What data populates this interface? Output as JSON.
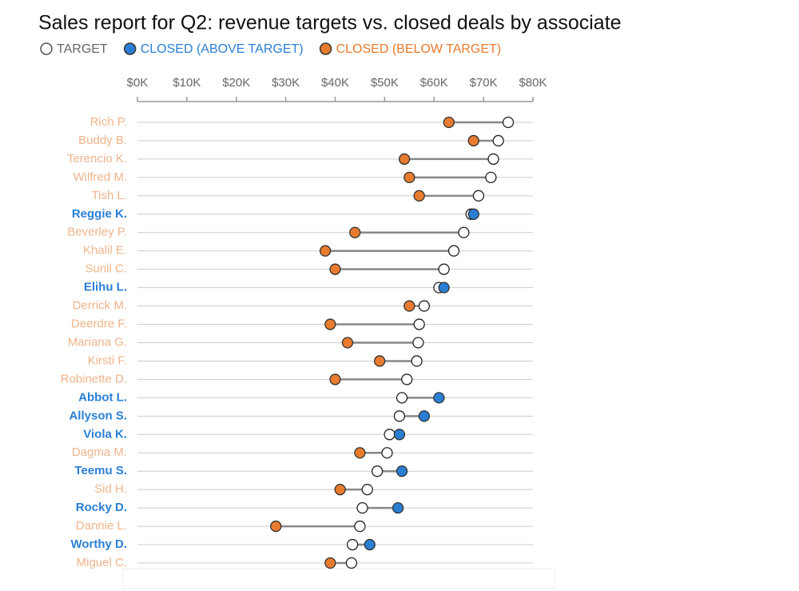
{
  "chart_data": {
    "type": "dot",
    "title": "Sales report for Q2: revenue targets vs. closed deals by associate",
    "categories": [
      "Rich P.",
      "Buddy B.",
      "Terencio K.",
      "Wilfred M.",
      "Tish L.",
      "Reggie K.",
      "Beverley P.",
      "Khalil E.",
      "Sunil C.",
      "Elihu L.",
      "Derrick M.",
      "Deerdre F.",
      "Mariana G.",
      "Kirsti F.",
      "Robinette D.",
      "Abbot L.",
      "Allyson S.",
      "Viola K.",
      "Dagma M.",
      "Teemu S.",
      "Sid H.",
      "Rocky D.",
      "Dannie L.",
      "Worthy D.",
      "Miguel C."
    ],
    "series": [
      {
        "name": "TARGET",
        "color": "#ffffff",
        "values": [
          75,
          73,
          72,
          71.5,
          69,
          67.5,
          66,
          64,
          62,
          61,
          58,
          57,
          56.8,
          56.5,
          54.5,
          53.5,
          53,
          51,
          50.5,
          48.5,
          46.5,
          45.5,
          45,
          43.5,
          43.3
        ]
      },
      {
        "name": "CLOSED (ABOVE TARGET)",
        "color": "#2a7fd4",
        "values": [
          null,
          null,
          null,
          null,
          null,
          68,
          null,
          null,
          null,
          62,
          null,
          null,
          null,
          null,
          null,
          61,
          58,
          53,
          null,
          53.5,
          null,
          52.7,
          null,
          47,
          null
        ]
      },
      {
        "name": "CLOSED (BELOW TARGET)",
        "color": "#e87b2e",
        "values": [
          63,
          68,
          54,
          55,
          57,
          null,
          44,
          38,
          40,
          null,
          55,
          39,
          42.5,
          49,
          40,
          null,
          null,
          null,
          45,
          null,
          41,
          null,
          28,
          null,
          39
        ]
      }
    ],
    "xlim": [
      0,
      80
    ],
    "xticks": [
      {
        "value": 0,
        "label": "$0K"
      },
      {
        "value": 10,
        "label": "$10K"
      },
      {
        "value": 20,
        "label": "$20K"
      },
      {
        "value": 30,
        "label": "$30K"
      },
      {
        "value": 40,
        "label": "$40K"
      },
      {
        "value": 50,
        "label": "$50K"
      },
      {
        "value": 60,
        "label": "$60K"
      },
      {
        "value": 70,
        "label": "$70K"
      },
      {
        "value": 80,
        "label": "$80K"
      }
    ],
    "grid": true
  }
}
